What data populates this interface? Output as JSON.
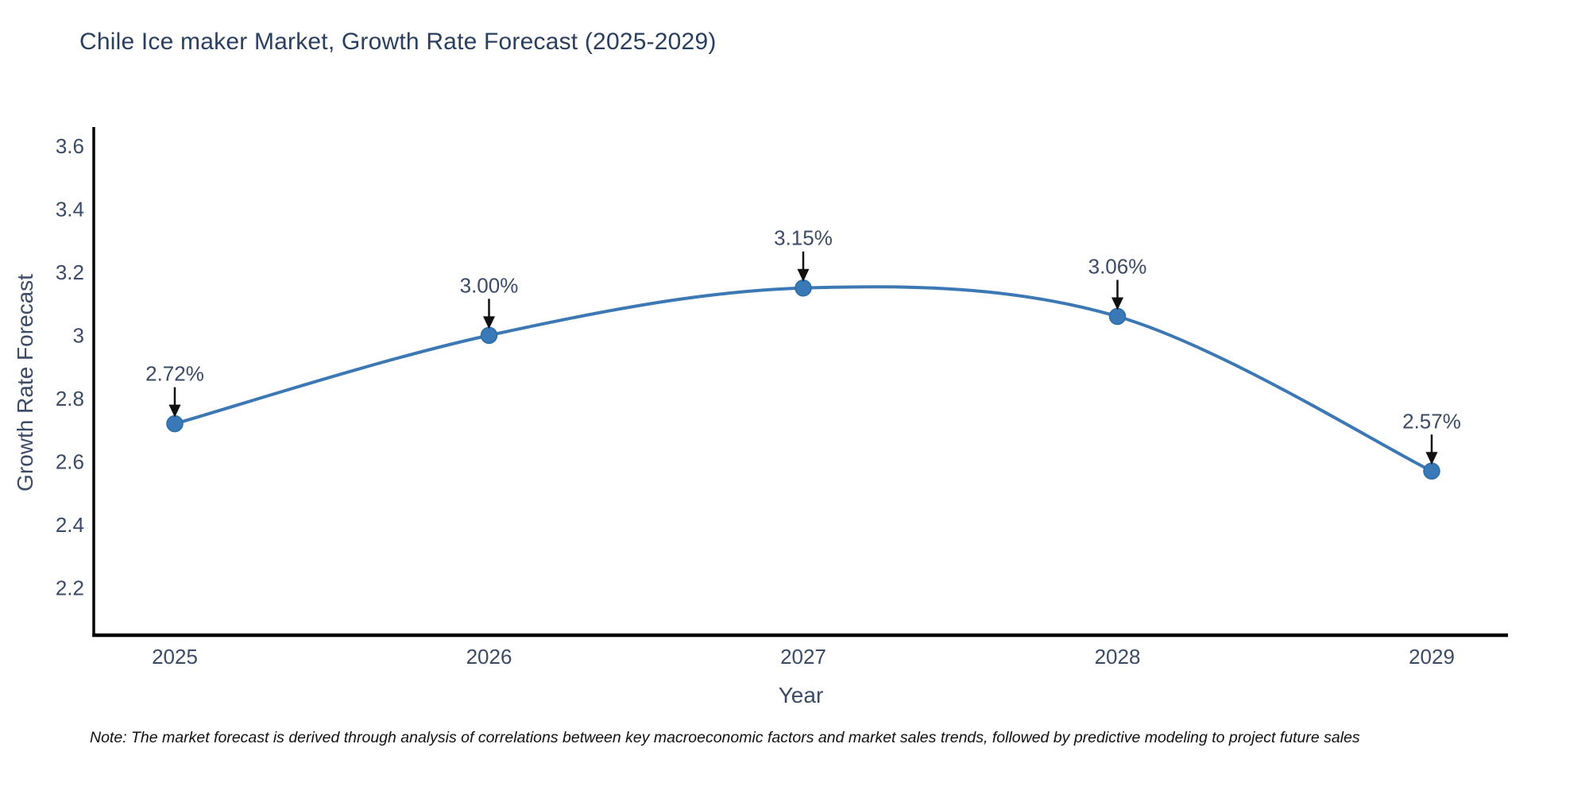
{
  "title": "Chile Ice maker Market, Growth Rate Forecast (2025-2029)",
  "note": "Note: The market forecast is derived through analysis of correlations between key macroeconomic factors and market sales trends, followed by predictive modeling to project future sales",
  "chart_data": {
    "type": "line",
    "title": "Chile Ice maker Market, Growth Rate Forecast (2025-2029)",
    "xlabel": "Year",
    "ylabel": "Growth Rate Forecast",
    "categories": [
      "2025",
      "2026",
      "2027",
      "2028",
      "2029"
    ],
    "series": [
      {
        "name": "Growth Rate Forecast",
        "values": [
          2.72,
          3.0,
          3.15,
          3.06,
          2.57
        ],
        "point_labels": [
          "2.72%",
          "3.00%",
          "3.15%",
          "3.06%",
          "2.57%"
        ]
      }
    ],
    "line_shape": "spline",
    "markers": true,
    "annotations_arrows": true,
    "grid": false,
    "legend_position": "none",
    "ylim": [
      2.05,
      3.66
    ],
    "yticks": [
      2.2,
      2.4,
      2.6,
      2.8,
      3,
      3.2,
      3.4,
      3.6
    ],
    "ytick_labels": [
      "2.2",
      "2.4",
      "2.6",
      "2.8",
      "3",
      "3.2",
      "3.4",
      "3.6"
    ],
    "colors": {
      "line": "#3c78b4",
      "marker": "#3a79b7",
      "marker_edge": "#2e6da4",
      "axis_spine": "#000000",
      "title_text": "#2a3f5f",
      "tick_text": "#3b4a66",
      "annotation_text": "#3b4a66",
      "arrow": "#111111",
      "note_text": "#111111",
      "background": "#ffffff"
    }
  }
}
